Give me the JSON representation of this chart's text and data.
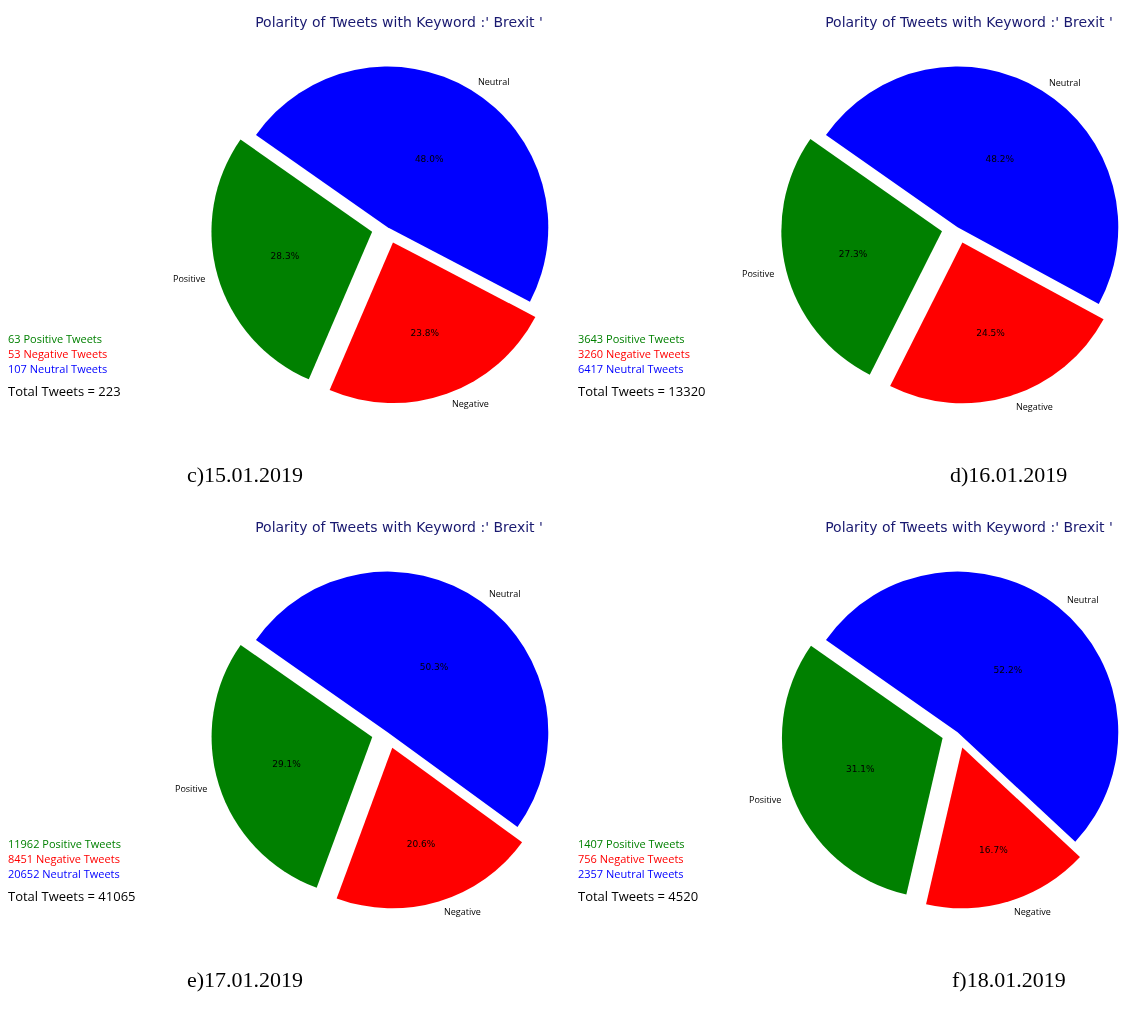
{
  "chart_data": [
    {
      "type": "pie",
      "title": "Polarity of Tweets with Keyword :' Brexit '",
      "categories": [
        "Positive",
        "Negative",
        "Neutral"
      ],
      "values": [
        28.3,
        23.8,
        48.0
      ],
      "colors": [
        "#008000",
        "#ff0000",
        "#0000ff"
      ],
      "value_labels": [
        "28.3%",
        "23.8%",
        "48.0%"
      ],
      "annotations": [
        "63 Positive Tweets",
        "53 Negative Tweets",
        "107 Neutral Tweets",
        "Total Tweets = 223",
        "c)15.01.2019"
      ]
    },
    {
      "type": "pie",
      "title": "Polarity of Tweets with Keyword :' Brexit '",
      "categories": [
        "Positive",
        "Negative",
        "Neutral"
      ],
      "values": [
        27.3,
        24.5,
        48.2
      ],
      "colors": [
        "#008000",
        "#ff0000",
        "#0000ff"
      ],
      "value_labels": [
        "27.3%",
        "24.5%",
        "48.2%"
      ],
      "annotations": [
        "3643 Positive Tweets",
        "3260 Negative Tweets",
        "6417 Neutral Tweets",
        "Total Tweets = 13320",
        "d)16.01.2019"
      ]
    },
    {
      "type": "pie",
      "title": "Polarity of Tweets with Keyword :' Brexit '",
      "categories": [
        "Positive",
        "Negative",
        "Neutral"
      ],
      "values": [
        29.1,
        20.6,
        50.3
      ],
      "colors": [
        "#008000",
        "#ff0000",
        "#0000ff"
      ],
      "value_labels": [
        "29.1%",
        "20.6%",
        "50.3%"
      ],
      "annotations": [
        "11962 Positive Tweets",
        "8451 Negative Tweets",
        "20652 Neutral Tweets",
        "Total Tweets = 41065",
        "e)17.01.2019"
      ]
    },
    {
      "type": "pie",
      "title": "Polarity of Tweets with Keyword :' Brexit '",
      "categories": [
        "Positive",
        "Negative",
        "Neutral"
      ],
      "values": [
        31.1,
        16.7,
        52.2
      ],
      "colors": [
        "#008000",
        "#ff0000",
        "#0000ff"
      ],
      "value_labels": [
        "31.1%",
        "16.7%",
        "52.2%"
      ],
      "annotations": [
        "1407 Positive Tweets",
        "756 Negative Tweets",
        "2357 Neutral Tweets",
        "Total Tweets = 4520",
        "f)18.01.2019"
      ]
    }
  ]
}
